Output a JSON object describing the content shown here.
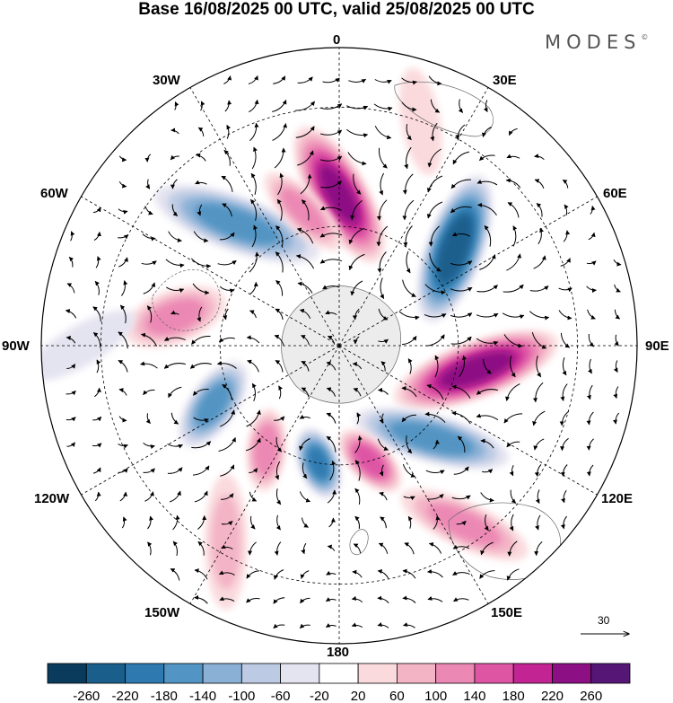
{
  "title": "Base 16/08/2025 00 UTC, valid 25/08/2025 00 UTC",
  "brand": "MODES",
  "brand_mark": "©",
  "longitude_labels": {
    "top": "0",
    "ne": "30E",
    "e60": "60E",
    "east": "90E",
    "e120": "120E",
    "se": "150E",
    "bottom": "180",
    "sw": "150W",
    "w120": "120W",
    "west": "90W",
    "w60": "60W",
    "nw": "30W"
  },
  "reference_vector": {
    "label": "30"
  },
  "colorbar": {
    "labels": [
      "-260",
      "-220",
      "-180",
      "-140",
      "-100",
      "-60",
      "-20",
      "20",
      "60",
      "100",
      "140",
      "180",
      "220",
      "260"
    ],
    "colors": [
      "#0a3b5c",
      "#1a5e8c",
      "#2e7ab0",
      "#5294c3",
      "#8ab0d6",
      "#bccae3",
      "#e4e3f0",
      "#ffffff",
      "#fadadd",
      "#f3b4c6",
      "#ec88b4",
      "#de55a4",
      "#c22593",
      "#8d0f84",
      "#561675"
    ]
  },
  "anomalies": [
    {
      "lon": 0,
      "lat": -52,
      "value": 230,
      "len": 18,
      "wid": 7
    },
    {
      "lon": 50,
      "lat": -52,
      "value": -250,
      "len": 18,
      "wid": 7
    },
    {
      "lon": 100,
      "lat": -55,
      "value": 240,
      "len": 22,
      "wid": 7
    },
    {
      "lon": 135,
      "lat": -57,
      "value": -170,
      "len": 22,
      "wid": 6
    },
    {
      "lon": 165,
      "lat": -60,
      "value": 170,
      "len": 12,
      "wid": 5
    },
    {
      "lon": 190,
      "lat": -60,
      "value": -190,
      "len": 11,
      "wid": 5
    },
    {
      "lon": 215,
      "lat": -58,
      "value": 140,
      "len": 12,
      "wid": 5
    },
    {
      "lon": 245,
      "lat": -55,
      "value": -160,
      "len": 13,
      "wid": 6
    },
    {
      "lon": 280,
      "lat": -48,
      "value": 120,
      "len": 12,
      "wid": 7
    },
    {
      "lon": 320,
      "lat": -50,
      "value": -160,
      "len": 20,
      "wid": 7
    },
    {
      "lon": 345,
      "lat": -55,
      "value": 120,
      "len": 14,
      "wid": 5
    },
    {
      "lon": 145,
      "lat": -35,
      "value": 120,
      "len": 12,
      "wid": 6
    },
    {
      "lon": 210,
      "lat": -33,
      "value": 80,
      "len": 12,
      "wid": 6
    },
    {
      "lon": 270,
      "lat": -25,
      "value": -60,
      "len": 10,
      "wid": 6
    },
    {
      "lon": 20,
      "lat": -30,
      "value": 50,
      "len": 10,
      "wid": 6
    }
  ]
}
